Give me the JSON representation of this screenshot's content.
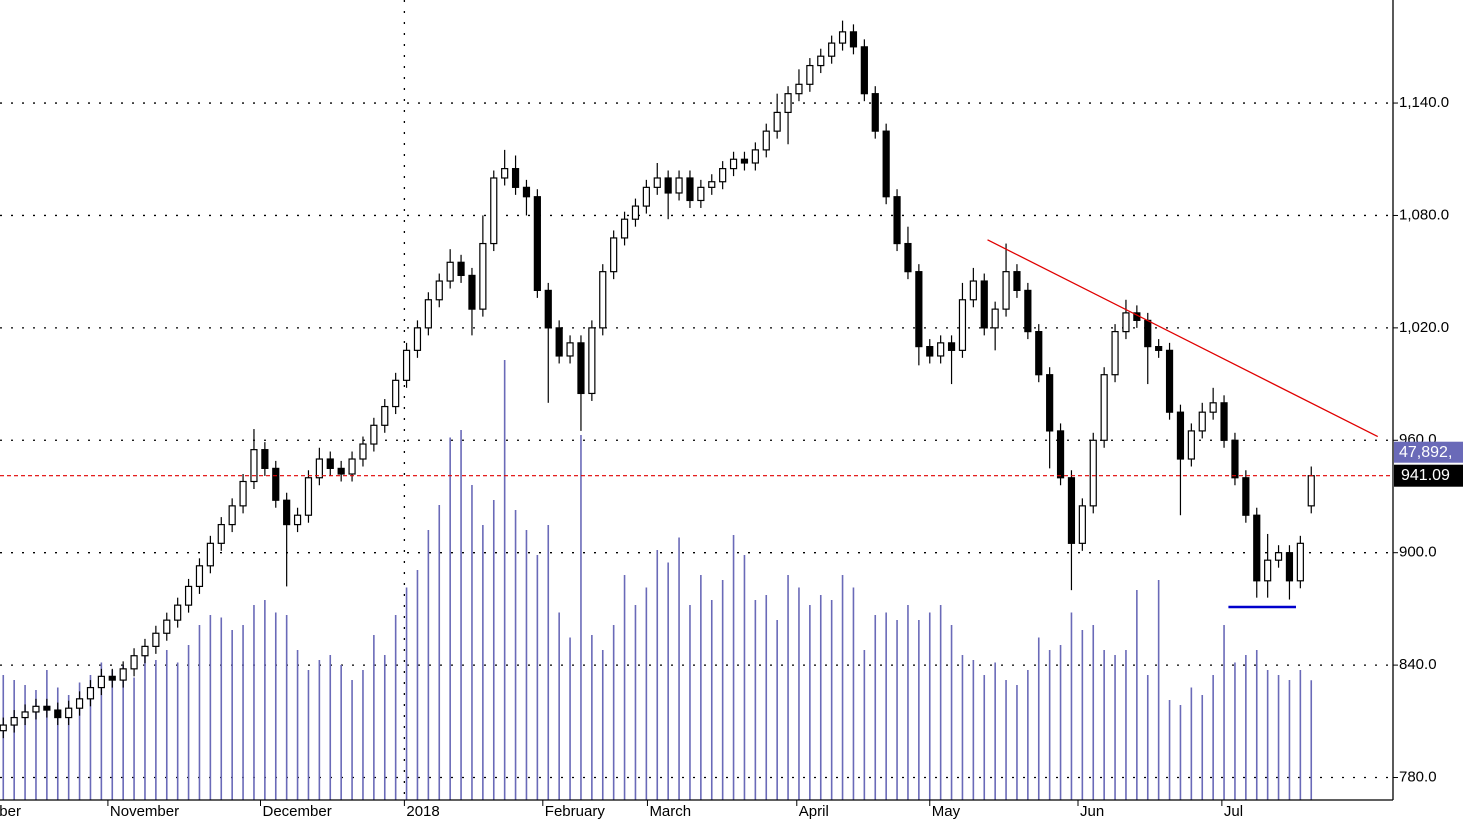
{
  "chart_data": {
    "type": "candlestick",
    "xlim": [
      -0.3,
      127.5
    ],
    "ylim": [
      768,
      1195
    ],
    "yticks": [
      {
        "value": 780,
        "label": "780.0"
      },
      {
        "value": 840,
        "label": "840.0"
      },
      {
        "value": 900,
        "label": "900.0"
      },
      {
        "value": 960,
        "label": "960.0"
      },
      {
        "value": 1020,
        "label": "1,020.0"
      },
      {
        "value": 1080,
        "label": "1,080.0"
      },
      {
        "value": 1140,
        "label": "1,140.0"
      }
    ],
    "xticks": [
      {
        "value": -0.55,
        "label": "ber"
      },
      {
        "value": 9.6,
        "label": "November"
      },
      {
        "value": 23.6,
        "label": "December"
      },
      {
        "value": 36.8,
        "label": "2018"
      },
      {
        "value": 49.5,
        "label": "February"
      },
      {
        "value": 59.1,
        "label": "March"
      },
      {
        "value": 72.8,
        "label": "April"
      },
      {
        "value": 85,
        "label": "May"
      },
      {
        "value": 98.6,
        "label": "Jun"
      },
      {
        "value": 111.8,
        "label": "Jul"
      }
    ],
    "year_line": 36.8,
    "grid": true,
    "open": [
      805,
      808,
      812,
      815,
      818,
      816,
      812,
      817,
      822,
      828,
      834,
      832,
      838,
      845,
      850,
      857,
      864,
      872,
      882,
      893,
      905,
      915,
      925,
      938,
      955,
      945,
      928,
      915,
      920,
      940,
      950,
      945,
      942,
      950,
      958,
      968,
      978,
      992,
      1008,
      1020,
      1035,
      1045,
      1055,
      1048,
      1030,
      1065,
      1100,
      1105,
      1095,
      1090,
      1040,
      1020,
      1005,
      1012,
      985,
      1020,
      1050,
      1068,
      1078,
      1085,
      1095,
      1100,
      1092,
      1100,
      1088,
      1095,
      1098,
      1105,
      1110,
      1108,
      1115,
      1125,
      1135,
      1145,
      1150,
      1160,
      1165,
      1172,
      1178,
      1170,
      1145,
      1125,
      1090,
      1065,
      1050,
      1010,
      1005,
      1012,
      1008,
      1035,
      1045,
      1020,
      1030,
      1050,
      1040,
      1018,
      995,
      965,
      940,
      905,
      925,
      960,
      995,
      1018,
      1028,
      1024,
      1010,
      1008,
      975,
      950,
      965,
      975,
      980,
      960,
      940,
      920,
      885,
      896,
      900,
      885,
      925
    ],
    "high": [
      812,
      816,
      819,
      822,
      822,
      820,
      821,
      826,
      832,
      838,
      838,
      842,
      849,
      854,
      861,
      868,
      876,
      886,
      897,
      909,
      919,
      929,
      942,
      966,
      959,
      949,
      932,
      924,
      944,
      956,
      954,
      949,
      954,
      962,
      972,
      982,
      996,
      1012,
      1024,
      1039,
      1049,
      1062,
      1059,
      1052,
      1080,
      1104,
      1115,
      1112,
      1099,
      1094,
      1044,
      1024,
      1016,
      1016,
      1024,
      1054,
      1072,
      1082,
      1089,
      1099,
      1108,
      1104,
      1104,
      1104,
      1099,
      1102,
      1109,
      1114,
      1114,
      1119,
      1129,
      1145,
      1149,
      1158,
      1164,
      1169,
      1176,
      1184,
      1182,
      1174,
      1149,
      1129,
      1094,
      1074,
      1054,
      1014,
      1016,
      1016,
      1044,
      1052,
      1049,
      1034,
      1065,
      1054,
      1044,
      1022,
      999,
      969,
      944,
      929,
      964,
      999,
      1022,
      1035,
      1032,
      1028,
      1014,
      1012,
      979,
      969,
      980,
      988,
      984,
      964,
      944,
      924,
      910,
      904,
      904,
      909,
      946
    ],
    "low": [
      801,
      804,
      808,
      811,
      812,
      808,
      808,
      813,
      818,
      824,
      828,
      828,
      834,
      841,
      846,
      853,
      860,
      868,
      878,
      889,
      901,
      911,
      921,
      934,
      941,
      924,
      882,
      911,
      916,
      936,
      941,
      938,
      938,
      946,
      954,
      964,
      974,
      988,
      1004,
      1016,
      1031,
      1041,
      1044,
      1016,
      1026,
      1061,
      1096,
      1091,
      1080,
      1036,
      980,
      1001,
      1001,
      965,
      981,
      1016,
      1046,
      1064,
      1074,
      1081,
      1091,
      1078,
      1088,
      1084,
      1084,
      1091,
      1094,
      1101,
      1104,
      1104,
      1111,
      1121,
      1118,
      1141,
      1146,
      1156,
      1161,
      1168,
      1166,
      1141,
      1121,
      1086,
      1061,
      1046,
      1000,
      1001,
      1001,
      990,
      1004,
      1031,
      1016,
      1008,
      1026,
      1036,
      1014,
      991,
      945,
      936,
      880,
      901,
      921,
      956,
      991,
      1014,
      1020,
      990,
      1004,
      971,
      920,
      946,
      961,
      971,
      956,
      936,
      916,
      876,
      876,
      892,
      875,
      881,
      921
    ],
    "close": [
      808,
      812,
      815,
      818,
      816,
      812,
      817,
      822,
      828,
      834,
      832,
      838,
      845,
      850,
      857,
      864,
      872,
      882,
      893,
      905,
      915,
      925,
      938,
      955,
      945,
      928,
      915,
      920,
      940,
      950,
      945,
      942,
      950,
      958,
      968,
      978,
      992,
      1008,
      1020,
      1035,
      1045,
      1055,
      1048,
      1030,
      1065,
      1100,
      1105,
      1095,
      1090,
      1040,
      1020,
      1005,
      1012,
      985,
      1020,
      1050,
      1068,
      1078,
      1085,
      1095,
      1100,
      1092,
      1100,
      1088,
      1095,
      1098,
      1105,
      1110,
      1108,
      1115,
      1125,
      1135,
      1145,
      1150,
      1160,
      1165,
      1172,
      1178,
      1170,
      1145,
      1125,
      1090,
      1065,
      1050,
      1010,
      1005,
      1012,
      1008,
      1035,
      1045,
      1020,
      1030,
      1050,
      1040,
      1018,
      995,
      965,
      940,
      905,
      925,
      960,
      995,
      1018,
      1028,
      1024,
      1010,
      1008,
      975,
      950,
      965,
      975,
      980,
      960,
      940,
      920,
      885,
      896,
      900,
      885,
      905,
      941.09
    ],
    "volume": [
      50000,
      48000,
      46000,
      44000,
      52000,
      45000,
      42000,
      47000,
      50000,
      55000,
      52000,
      54000,
      49000,
      58000,
      56000,
      60000,
      55000,
      62000,
      70000,
      74000,
      73000,
      68000,
      70000,
      78000,
      80000,
      75000,
      74000,
      60000,
      52000,
      56000,
      58000,
      54000,
      48000,
      52000,
      66000,
      58000,
      74000,
      85000,
      92000,
      108000,
      118000,
      145000,
      148000,
      126000,
      110000,
      120000,
      176000,
      116000,
      108000,
      98000,
      110000,
      75000,
      65000,
      146000,
      66000,
      60000,
      70000,
      90000,
      78000,
      85000,
      100000,
      95000,
      105000,
      78000,
      90000,
      80000,
      88000,
      106000,
      98000,
      80000,
      82000,
      72000,
      90000,
      85000,
      78000,
      82000,
      80000,
      90000,
      85000,
      60000,
      74000,
      75000,
      72000,
      78000,
      72000,
      75000,
      78000,
      70000,
      58000,
      56000,
      50000,
      55000,
      48000,
      46000,
      52000,
      65000,
      60000,
      62000,
      75000,
      68000,
      70000,
      60000,
      58000,
      60000,
      84000,
      50000,
      88000,
      40000,
      38000,
      45000,
      42000,
      50000,
      70000,
      55000,
      58000,
      60000,
      52000,
      50000,
      48000,
      52000,
      47892
    ],
    "volume_ylim": [
      0,
      320000
    ],
    "volume_label": "47,892,",
    "colors": {
      "up": "#ffffff",
      "down": "#000000",
      "volume": "#6a6ab8",
      "volume_box": "#6a6ab8",
      "price_box": "#000000",
      "price_line": "#e00000"
    },
    "trendline": {
      "x": [
        90.3,
        126.1
      ],
      "y": [
        1067,
        962
      ],
      "color": "#e00000"
    },
    "support": {
      "x": [
        112.4,
        118.6
      ],
      "y": [
        871,
        871
      ],
      "color": "#0000cc"
    }
  }
}
